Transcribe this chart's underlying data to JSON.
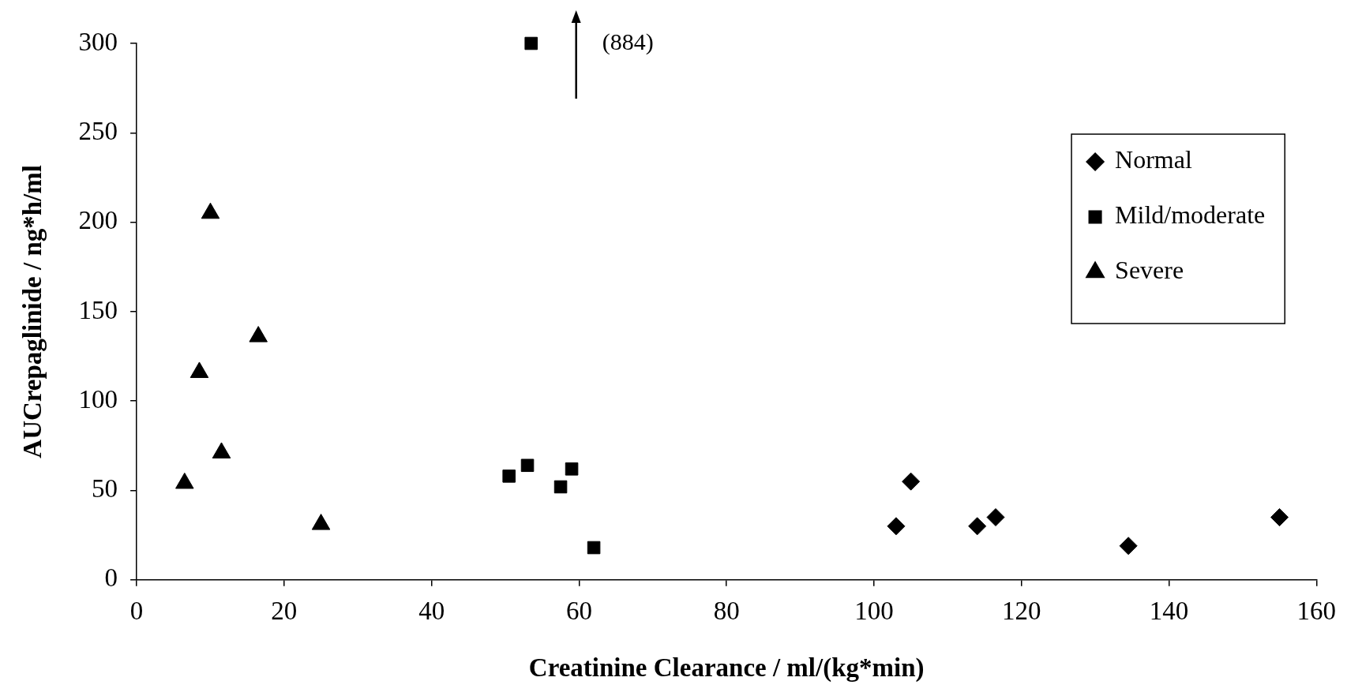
{
  "chart_data": {
    "type": "scatter",
    "xlabel": "Creatinine Clearance / ml/(kg*min)",
    "ylabel": "AUCrepaglinide / ng*h/ml",
    "xlim": [
      0,
      160
    ],
    "xticks": [
      0,
      20,
      40,
      60,
      80,
      100,
      120,
      140,
      160
    ],
    "ylim": [
      0,
      300
    ],
    "yticks": [
      0,
      50,
      100,
      150,
      200,
      250,
      300
    ],
    "grid": false,
    "legend": "top right",
    "series": [
      {
        "name": "Normal",
        "color": "#000000",
        "marker": "diamond",
        "x": [
          103,
          105,
          114,
          116.5,
          134.5,
          155
        ],
        "values": [
          30,
          55,
          30,
          35,
          19,
          35
        ]
      },
      {
        "name": "Mild/moderate",
        "color": "#000000",
        "marker": "square",
        "x": [
          53.5,
          50.5,
          53,
          57.5,
          59,
          62
        ],
        "values": [
          300,
          58,
          64,
          52,
          62,
          18
        ]
      },
      {
        "name": "Severe",
        "color": "#000000",
        "marker": "triangle",
        "x": [
          10,
          8.5,
          16.5,
          11.5,
          6.5,
          25
        ],
        "values": [
          205,
          116,
          136,
          71,
          54,
          31
        ]
      }
    ],
    "annotations": [
      "(884)"
    ]
  }
}
